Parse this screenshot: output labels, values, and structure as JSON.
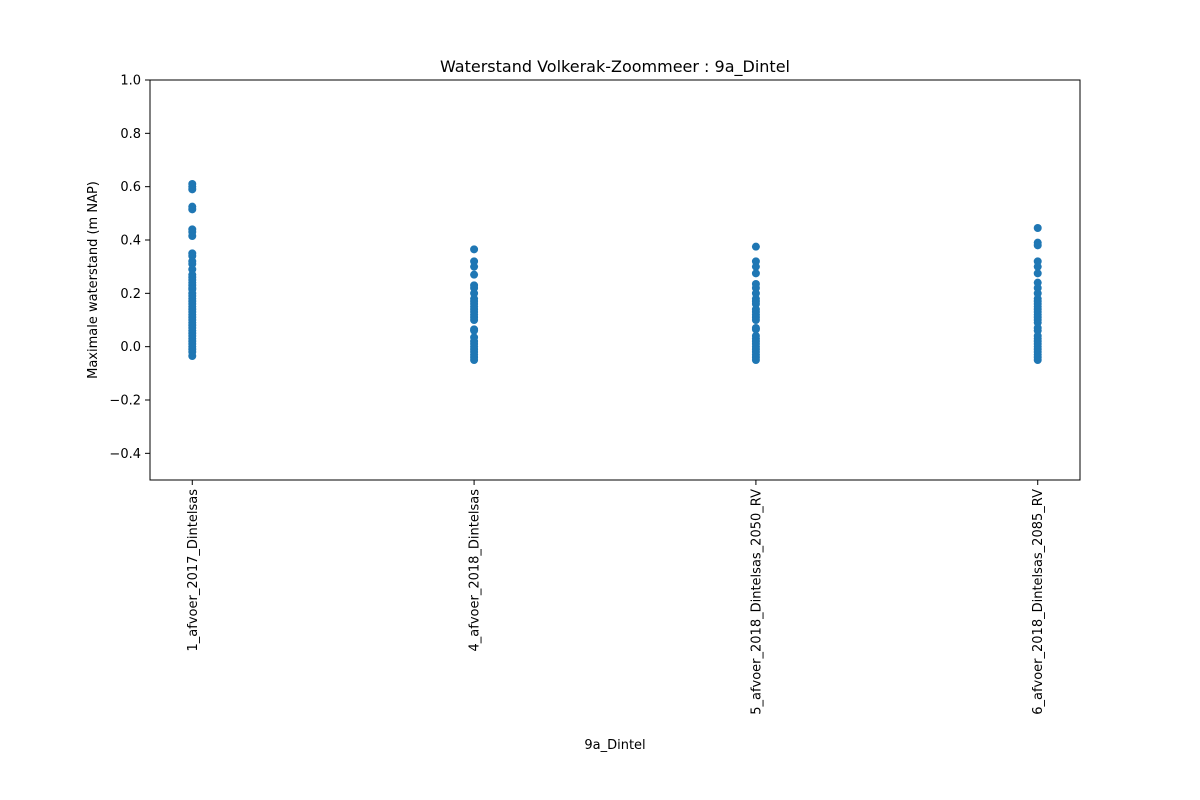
{
  "chart_data": {
    "type": "scatter",
    "title": "Waterstand Volkerak-Zoommeer : 9a_Dintel",
    "xlabel": "9a_Dintel",
    "ylabel": "Maximale waterstand (m NAP)",
    "ylim": [
      -0.5,
      1.0
    ],
    "yticks": [
      -0.4,
      -0.2,
      0.0,
      0.2,
      0.4,
      0.6,
      0.8,
      1.0
    ],
    "ytick_labels": [
      "−0.4",
      "−0.2",
      "0.0",
      "0.2",
      "0.4",
      "0.6",
      "0.8",
      "1.0"
    ],
    "categories": [
      "1_afvoer_2017_Dintelsas",
      "4_afvoer_2018_Dintelsas",
      "5_afvoer_2018_Dintelsas_2050_RV",
      "6_afvoer_2018_Dintelsas_2085_RV"
    ],
    "grid": false,
    "legend": "none",
    "marker_color": "#1f77b4",
    "series": [
      {
        "category": "1_afvoer_2017_Dintelsas",
        "values": [
          0.61,
          0.6,
          0.59,
          0.525,
          0.515,
          0.44,
          0.43,
          0.415,
          0.35,
          0.34,
          0.32,
          0.31,
          0.29,
          0.27,
          0.26,
          0.25,
          0.24,
          0.23,
          0.22,
          0.215,
          0.2,
          0.19,
          0.18,
          0.17,
          0.16,
          0.15,
          0.14,
          0.13,
          0.12,
          0.11,
          0.1,
          0.09,
          0.08,
          0.07,
          0.06,
          0.05,
          0.04,
          0.03,
          0.02,
          0.01,
          0.0,
          -0.01,
          -0.02,
          -0.035
        ]
      },
      {
        "category": "4_afvoer_2018_Dintelsas",
        "values": [
          0.365,
          0.32,
          0.3,
          0.27,
          0.23,
          0.22,
          0.2,
          0.18,
          0.17,
          0.16,
          0.15,
          0.14,
          0.13,
          0.12,
          0.11,
          0.1,
          0.065,
          0.06,
          0.035,
          0.02,
          0.01,
          0.0,
          -0.01,
          -0.02,
          -0.03,
          -0.04,
          -0.05
        ]
      },
      {
        "category": "5_afvoer_2018_Dintelsas_2050_RV",
        "values": [
          0.375,
          0.32,
          0.3,
          0.275,
          0.235,
          0.22,
          0.2,
          0.18,
          0.17,
          0.16,
          0.14,
          0.13,
          0.12,
          0.11,
          0.1,
          0.07,
          0.065,
          0.04,
          0.03,
          0.02,
          0.01,
          0.0,
          -0.01,
          -0.02,
          -0.03,
          -0.04,
          -0.05
        ]
      },
      {
        "category": "6_afvoer_2018_Dintelsas_2085_RV",
        "values": [
          0.445,
          0.39,
          0.38,
          0.32,
          0.3,
          0.275,
          0.24,
          0.22,
          0.2,
          0.18,
          0.17,
          0.16,
          0.15,
          0.14,
          0.13,
          0.12,
          0.11,
          0.1,
          0.09,
          0.07,
          0.06,
          0.04,
          0.03,
          0.02,
          0.01,
          0.0,
          -0.01,
          -0.02,
          -0.03,
          -0.04,
          -0.05
        ]
      }
    ]
  }
}
